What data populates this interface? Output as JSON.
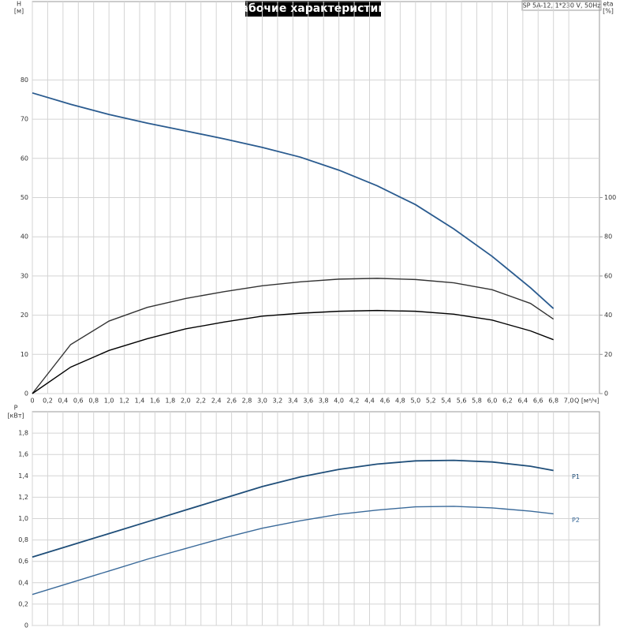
{
  "chart_data": [
    {
      "type": "line",
      "title": "Рабочие характеристики",
      "subtitle": "SP 5A-12, 1*230 V, 50Hz",
      "ylabel": "H",
      "yunit": "[м]",
      "y2label": "eta",
      "y2unit": "[%]",
      "xlabel": "Q [м³/ч]",
      "xlim": [
        0,
        7.4
      ],
      "ylim": [
        0,
        100
      ],
      "y2lim": [
        0,
        200
      ],
      "grid": true,
      "yticks": [
        0,
        10,
        20,
        30,
        40,
        50,
        60,
        70,
        80
      ],
      "y2ticks": [
        0,
        20,
        40,
        60,
        80,
        100
      ],
      "xticks": [
        0,
        {
          "value": 0.2,
          "label": "0,2"
        },
        {
          "value": 0.4,
          "label": "0,4"
        },
        {
          "value": 0.6,
          "label": "0,6"
        },
        {
          "value": 0.8,
          "label": "0,8"
        },
        {
          "value": 1.0,
          "label": "1,0"
        },
        {
          "value": 1.2,
          "label": "1,2"
        },
        {
          "value": 1.4,
          "label": "1,4"
        },
        {
          "value": 1.6,
          "label": "1,6"
        },
        {
          "value": 1.8,
          "label": "1,8"
        },
        {
          "value": 2.0,
          "label": "2,0"
        },
        {
          "value": 2.2,
          "label": "2,2"
        },
        {
          "value": 2.4,
          "label": "2,4"
        },
        {
          "value": 2.6,
          "label": "2,6"
        },
        {
          "value": 2.8,
          "label": "2,8"
        },
        {
          "value": 3.0,
          "label": "3,0"
        },
        {
          "value": 3.2,
          "label": "3,2"
        },
        {
          "value": 3.4,
          "label": "3,4"
        },
        {
          "value": 3.6,
          "label": "3,6"
        },
        {
          "value": 3.8,
          "label": "3,8"
        },
        {
          "value": 4.0,
          "label": "4,0"
        },
        {
          "value": 4.2,
          "label": "4,2"
        },
        {
          "value": 4.4,
          "label": "4,4"
        },
        {
          "value": 4.6,
          "label": "4,6"
        },
        {
          "value": 4.8,
          "label": "4,8"
        },
        {
          "value": 5.0,
          "label": "5,0"
        },
        {
          "value": 5.2,
          "label": "5,2"
        },
        {
          "value": 5.4,
          "label": "5,4"
        },
        {
          "value": 5.6,
          "label": "5,6"
        },
        {
          "value": 5.8,
          "label": "5,8"
        },
        {
          "value": 6.0,
          "label": "6,0"
        },
        {
          "value": 6.2,
          "label": "6,2"
        },
        {
          "value": 6.4,
          "label": "6,4"
        },
        {
          "value": 6.6,
          "label": "6,6"
        },
        {
          "value": 6.8,
          "label": "6,8"
        },
        {
          "value": 7.0,
          "label": "7,0"
        }
      ],
      "x": [
        0,
        0.5,
        1.0,
        1.5,
        2.0,
        2.5,
        3.0,
        3.5,
        4.0,
        4.5,
        5.0,
        5.5,
        6.0,
        6.5,
        6.8
      ],
      "series": [
        {
          "color": "#2a5b8f",
          "values": [
            76.7,
            73.8,
            71.2,
            69.0,
            67.0,
            65.0,
            62.8,
            60.3,
            57.0,
            53.0,
            48.2,
            42.0,
            35.0,
            27.0,
            21.7
          ]
        },
        {
          "color": "#333333",
          "axis": "y2",
          "values": [
            0,
            25,
            37,
            44,
            48.5,
            52,
            55,
            57,
            58.4,
            58.8,
            58.2,
            56.5,
            53,
            46,
            38
          ]
        },
        {
          "color": "#000000",
          "axis": "y2",
          "values": [
            0,
            13.5,
            22,
            28,
            33,
            36.5,
            39.5,
            41,
            42,
            42.4,
            42,
            40.5,
            37.5,
            32,
            27.5
          ]
        }
      ]
    },
    {
      "type": "line",
      "ylabel": "P",
      "yunit": "[кВт]",
      "xlim": [
        0,
        7.4
      ],
      "ylim": [
        0,
        2.0
      ],
      "grid": true,
      "yticks": [
        0,
        {
          "value": 0.2,
          "label": "0,2"
        },
        {
          "value": 0.4,
          "label": "0,4"
        },
        {
          "value": 0.6,
          "label": "0,6"
        },
        {
          "value": 0.8,
          "label": "0,8"
        },
        {
          "value": 1.0,
          "label": "1,0"
        },
        {
          "value": 1.2,
          "label": "1,2"
        },
        {
          "value": 1.4,
          "label": "1,4"
        },
        {
          "value": 1.6,
          "label": "1,6"
        },
        {
          "value": 1.8,
          "label": "1,8"
        }
      ],
      "x": [
        0,
        0.5,
        1.0,
        1.5,
        2.0,
        2.5,
        3.0,
        3.5,
        4.0,
        4.5,
        5.0,
        5.5,
        6.0,
        6.5,
        6.8
      ],
      "series": [
        {
          "name": "P1",
          "color": "#1f4e79",
          "values": [
            0.64,
            0.75,
            0.86,
            0.97,
            1.08,
            1.19,
            1.3,
            1.39,
            1.46,
            1.51,
            1.54,
            1.545,
            1.53,
            1.49,
            1.45
          ]
        },
        {
          "name": "P2",
          "color": "#3a6a9a",
          "values": [
            0.29,
            0.4,
            0.51,
            0.62,
            0.72,
            0.82,
            0.91,
            0.98,
            1.04,
            1.08,
            1.11,
            1.115,
            1.1,
            1.07,
            1.045
          ]
        }
      ]
    }
  ]
}
